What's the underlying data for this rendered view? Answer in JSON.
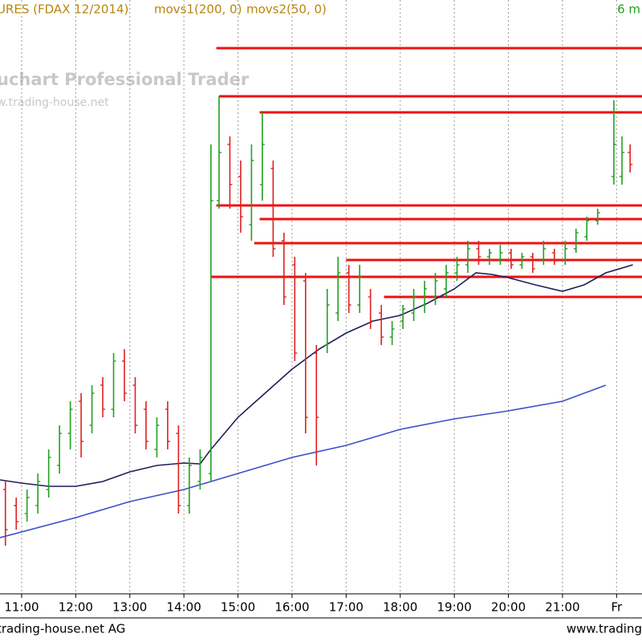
{
  "header": {
    "title": "URES (FDAX 12/2014)",
    "indicator_1": "movs1(200, 0)",
    "indicator_2": "movs2(50, 0)",
    "interval": "6 m"
  },
  "watermark": {
    "product": "uchart Professional Trader",
    "url": "w.trading-house.net"
  },
  "footer": {
    "left": "trading-house.net AG",
    "right": "www.trading"
  },
  "chart_data": {
    "type": "ohlc",
    "xlim": [
      10.6,
      22.47
    ],
    "ylim": [
      0,
      740
    ],
    "xticks": [
      {
        "value": 11,
        "label": "11:00"
      },
      {
        "value": 12,
        "label": "12:00"
      },
      {
        "value": 13,
        "label": "13:00"
      },
      {
        "value": 14,
        "label": "14:00"
      },
      {
        "value": 15,
        "label": "15:00"
      },
      {
        "value": 16,
        "label": "16:00"
      },
      {
        "value": 17,
        "label": "17:00"
      },
      {
        "value": 18,
        "label": "18:00"
      },
      {
        "value": 19,
        "label": "19:00"
      },
      {
        "value": 20,
        "label": "20:00"
      },
      {
        "value": 21,
        "label": "21:00"
      },
      {
        "value": 22,
        "label": "Fr"
      }
    ],
    "grid": true,
    "up_color": "#22a022",
    "down_color": "#e02020",
    "level_color": "#ee1111",
    "x": [
      10.7,
      10.9,
      11.1,
      11.3,
      11.5,
      11.7,
      11.9,
      12.1,
      12.3,
      12.5,
      12.7,
      12.9,
      13.1,
      13.3,
      13.5,
      13.7,
      13.9,
      14.1,
      14.3,
      14.5,
      14.65,
      14.85,
      15.05,
      15.25,
      15.45,
      15.65,
      15.85,
      16.05,
      16.25,
      16.45,
      16.65,
      16.85,
      17.05,
      17.25,
      17.45,
      17.65,
      17.85,
      18.05,
      18.25,
      18.45,
      18.65,
      18.85,
      19.05,
      19.25,
      19.45,
      19.65,
      19.85,
      20.05,
      20.25,
      20.45,
      20.65,
      20.85,
      21.05,
      21.25,
      21.45,
      21.65,
      21.95,
      22.1,
      22.25
    ],
    "high": [
      140,
      120,
      130,
      150,
      180,
      210,
      240,
      250,
      260,
      270,
      300,
      305,
      270,
      240,
      220,
      240,
      210,
      170,
      180,
      560,
      620,
      570,
      540,
      560,
      600,
      540,
      450,
      420,
      400,
      310,
      380,
      420,
      410,
      410,
      380,
      360,
      340,
      360,
      380,
      390,
      400,
      410,
      420,
      440,
      440,
      430,
      435,
      430,
      425,
      425,
      440,
      430,
      440,
      455,
      470,
      480,
      615,
      570,
      560
    ],
    "low": [
      60,
      80,
      90,
      100,
      120,
      150,
      180,
      170,
      200,
      220,
      220,
      240,
      200,
      180,
      170,
      180,
      100,
      100,
      130,
      140,
      480,
      480,
      450,
      440,
      490,
      420,
      360,
      290,
      200,
      160,
      300,
      340,
      350,
      350,
      330,
      310,
      310,
      330,
      340,
      350,
      360,
      370,
      390,
      400,
      410,
      410,
      410,
      405,
      405,
      400,
      410,
      410,
      410,
      425,
      440,
      460,
      510,
      510,
      525
    ],
    "open": [
      130,
      110,
      100,
      110,
      130,
      160,
      200,
      240,
      210,
      260,
      230,
      290,
      260,
      230,
      180,
      230,
      200,
      110,
      140,
      150,
      490,
      560,
      520,
      460,
      510,
      530,
      440,
      410,
      390,
      300,
      310,
      350,
      400,
      360,
      370,
      350,
      320,
      340,
      350,
      360,
      370,
      380,
      400,
      410,
      430,
      420,
      415,
      425,
      410,
      420,
      415,
      425,
      415,
      430,
      445,
      465,
      520,
      520,
      550
    ],
    "close": [
      80,
      90,
      120,
      140,
      170,
      200,
      230,
      190,
      250,
      230,
      290,
      250,
      210,
      190,
      210,
      190,
      110,
      160,
      170,
      490,
      550,
      510,
      470,
      540,
      560,
      430,
      370,
      300,
      220,
      220,
      360,
      400,
      360,
      395,
      340,
      320,
      330,
      355,
      370,
      380,
      390,
      400,
      410,
      430,
      420,
      425,
      425,
      410,
      420,
      405,
      430,
      415,
      430,
      450,
      465,
      475,
      560,
      550,
      535
    ],
    "series": [
      {
        "name": "movs1(200, 0)",
        "color": "#3a4fc8",
        "x": [
          10.6,
          12,
          13,
          14,
          14.5,
          15,
          16,
          17,
          18,
          19,
          20,
          21,
          21.8
        ],
        "values": [
          70,
          95,
          115,
          130,
          140,
          150,
          170,
          185,
          205,
          218,
          228,
          240,
          260
        ]
      },
      {
        "name": "movs2(50, 0)",
        "color": "#1c1f5a",
        "x": [
          10.6,
          11,
          11.5,
          12,
          12.5,
          13,
          13.5,
          14,
          14.3,
          14.5,
          15,
          15.5,
          16,
          16.5,
          17,
          17.5,
          18,
          18.5,
          19,
          19.4,
          19.7,
          20,
          20.5,
          21,
          21.4,
          21.8,
          22.3
        ],
        "values": [
          142,
          138,
          134,
          134,
          140,
          152,
          160,
          163,
          162,
          180,
          220,
          250,
          280,
          305,
          325,
          340,
          347,
          362,
          380,
          400,
          398,
          394,
          385,
          377,
          385,
          400,
          410
        ]
      }
    ],
    "levels": [
      {
        "start": 14.6,
        "value": 680
      },
      {
        "start": 14.65,
        "value": 620
      },
      {
        "start": 15.4,
        "value": 600
      },
      {
        "start": 14.6,
        "value": 484
      },
      {
        "start": 15.4,
        "value": 467
      },
      {
        "start": 15.3,
        "value": 437
      },
      {
        "start": 17.0,
        "value": 416
      },
      {
        "start": 14.5,
        "value": 395
      },
      {
        "start": 17.7,
        "value": 370
      }
    ]
  }
}
